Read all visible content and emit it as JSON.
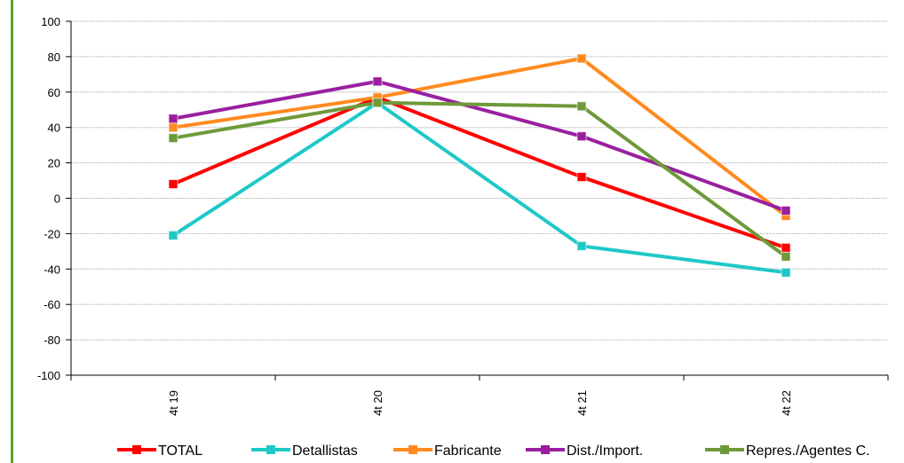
{
  "chart_data": {
    "type": "line",
    "title": "",
    "xlabel": "",
    "ylabel": "",
    "categories": [
      "4t 19",
      "4t 20",
      "4t 21",
      "4t 22"
    ],
    "ylim": [
      -100,
      100
    ],
    "yticks": [
      100,
      80,
      60,
      40,
      20,
      0,
      -20,
      -40,
      -60,
      -80,
      -100
    ],
    "grid": true,
    "legend_position": "bottom",
    "series": [
      {
        "name": "TOTAL",
        "color": "#ff0000",
        "values": [
          8,
          57,
          12,
          -28
        ]
      },
      {
        "name": "Detallistas",
        "color": "#1fc8c8",
        "values": [
          -21,
          54,
          -27,
          -42
        ]
      },
      {
        "name": "Fabricante",
        "color": "#ff8a1f",
        "values": [
          40,
          57,
          79,
          -10
        ]
      },
      {
        "name": "Dist./Import.",
        "color": "#9a1fa0",
        "values": [
          45,
          66,
          35,
          -7
        ]
      },
      {
        "name": "Repres./Agentes C.",
        "color": "#6e9a3a",
        "values": [
          34,
          54,
          52,
          -33
        ]
      }
    ]
  }
}
